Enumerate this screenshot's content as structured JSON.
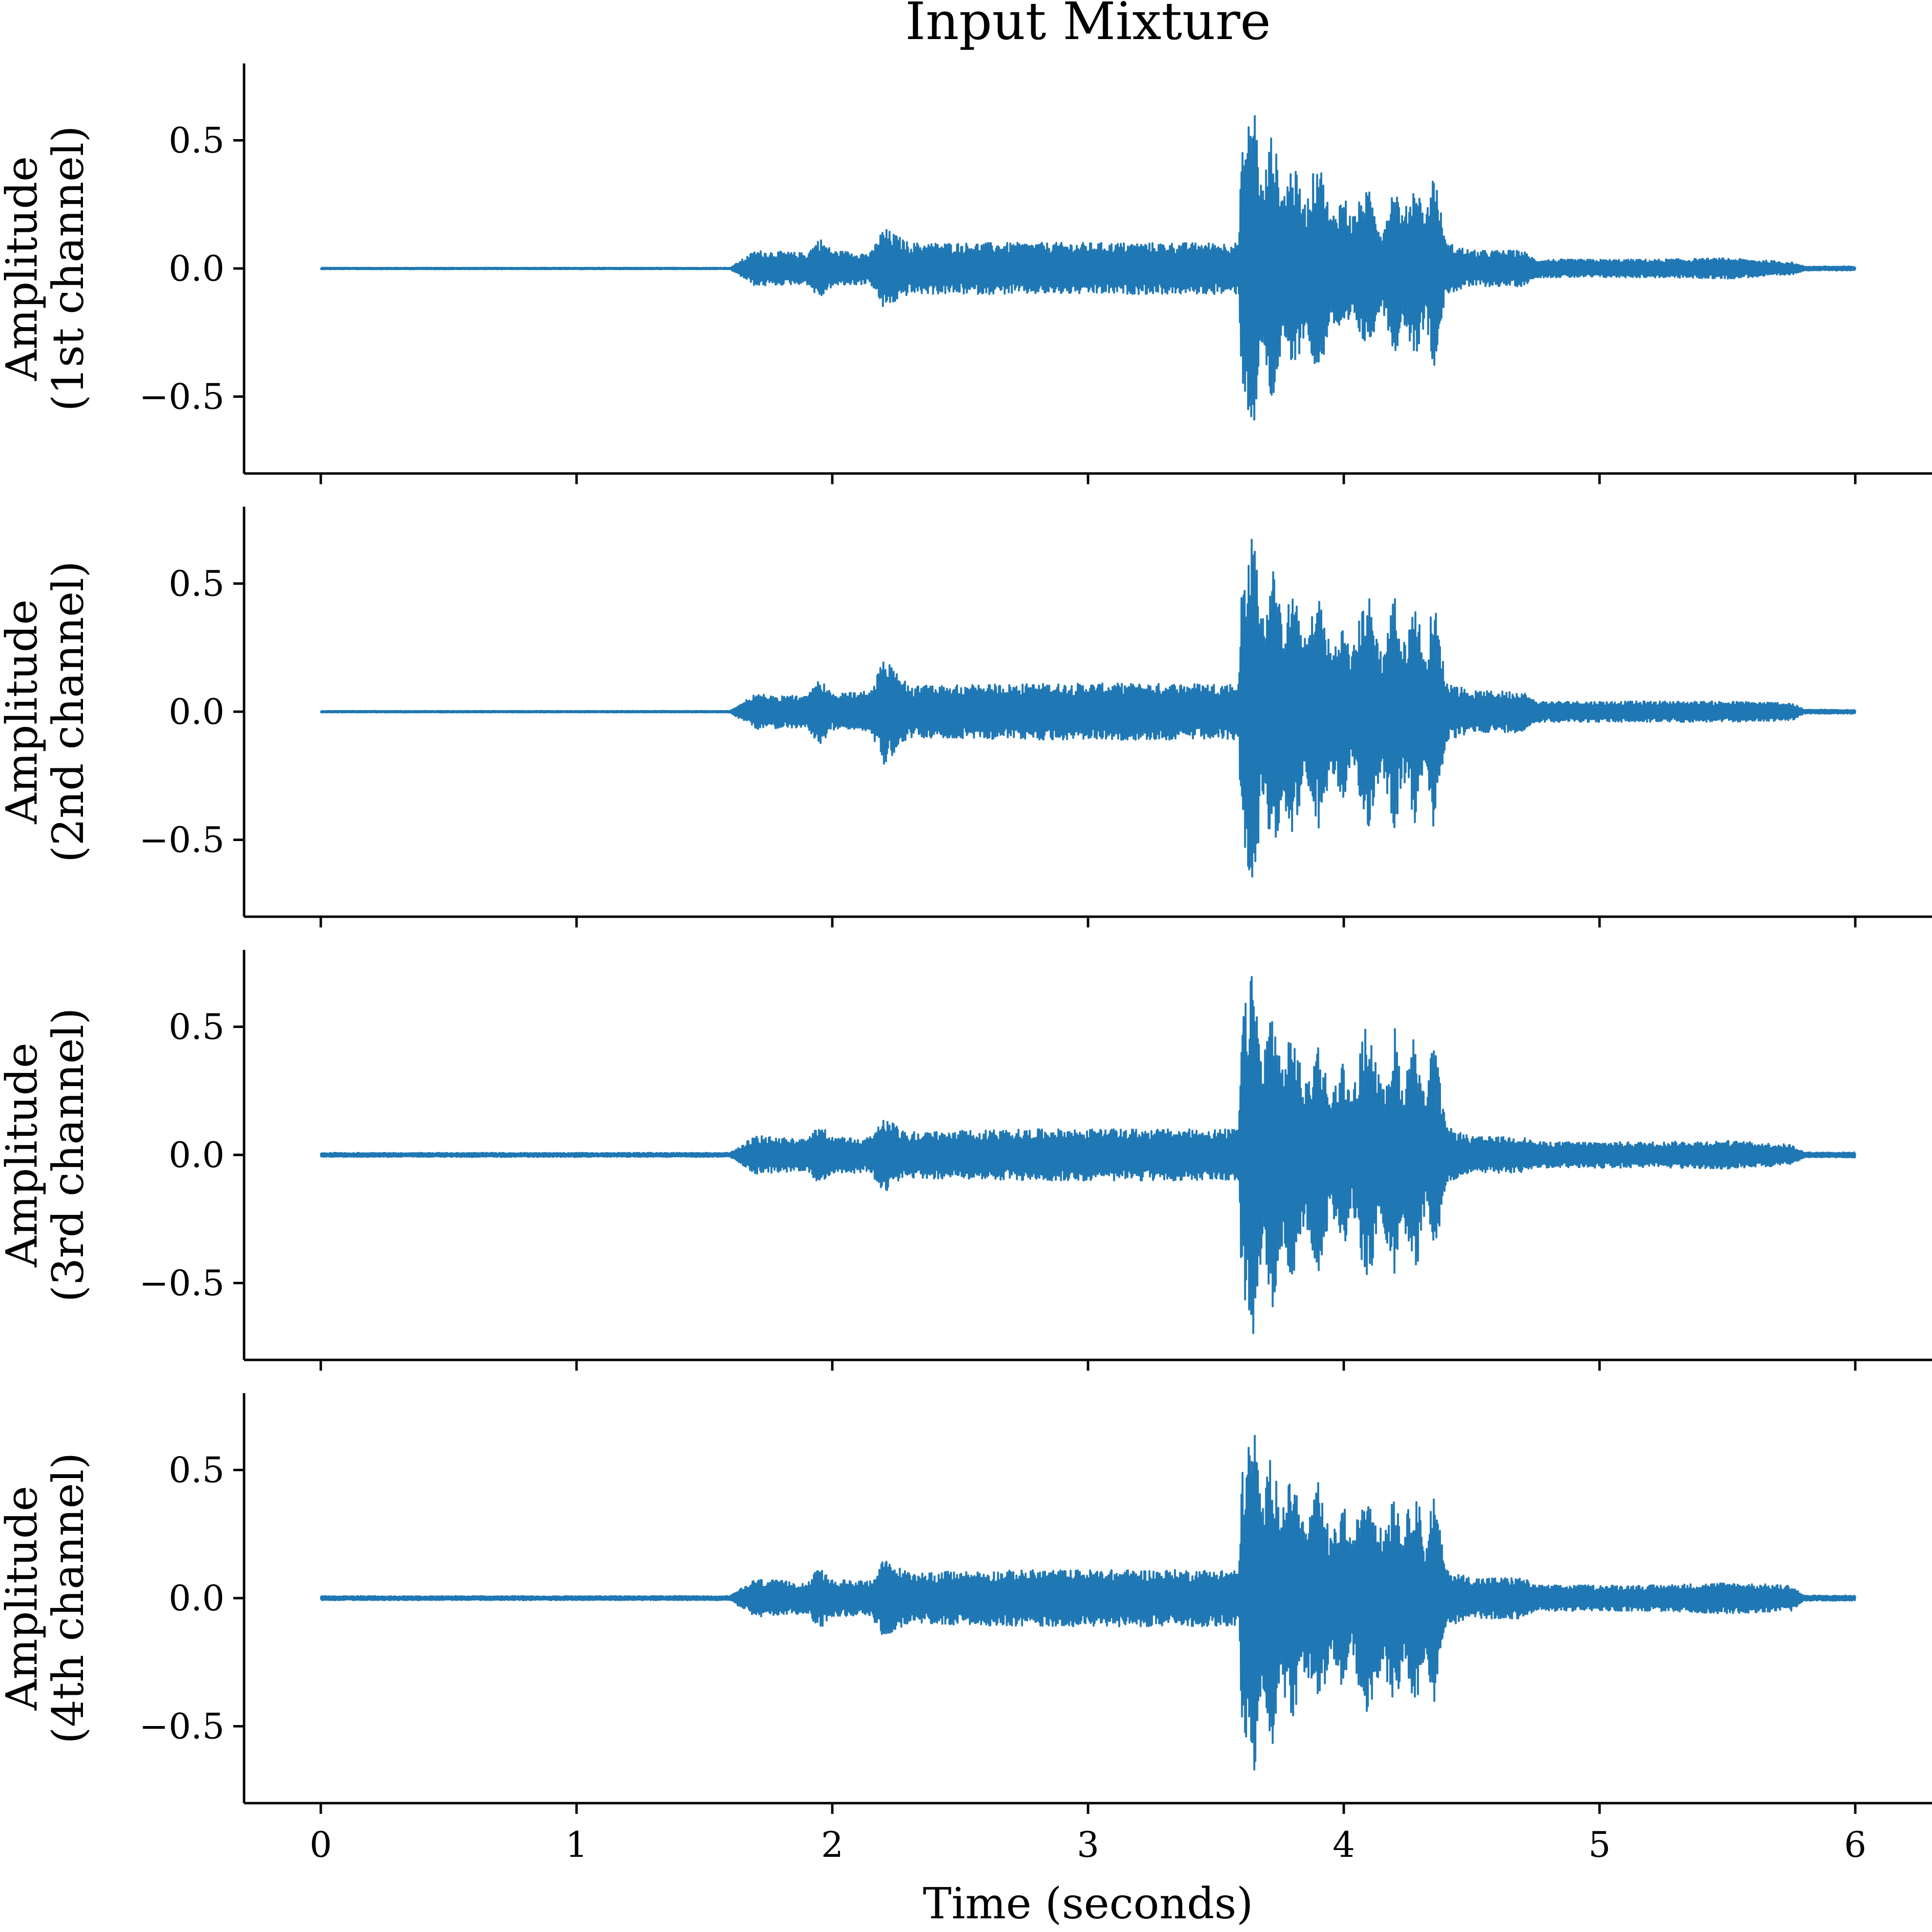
{
  "chart_data": {
    "type": "line",
    "title": "Input Mixture",
    "xlabel": "Time (seconds)",
    "xlim": [
      -0.3,
      6.3
    ],
    "xticks": [
      0,
      1,
      2,
      3,
      4,
      5,
      6
    ],
    "xtick_labels": [
      "0",
      "1",
      "2",
      "3",
      "4",
      "5",
      "6"
    ],
    "ylim": [
      -0.8,
      0.8
    ],
    "yticks": [
      0.5,
      0.0,
      -0.5
    ],
    "ytick_labels": [
      "0.5",
      "0.0",
      "−0.5"
    ],
    "grid": false,
    "line_color": "#1f77b4",
    "envelope_times": [
      0.0,
      1.6,
      1.7,
      1.9,
      1.95,
      2.0,
      2.15,
      2.2,
      2.3,
      2.8,
      3.5,
      3.59,
      3.6,
      3.65,
      3.68,
      3.72,
      3.76,
      3.8,
      3.85,
      3.9,
      3.95,
      4.0,
      4.03,
      4.08,
      4.1,
      4.15,
      4.2,
      4.23,
      4.28,
      4.32,
      4.35,
      4.4,
      4.5,
      4.7,
      4.75,
      5.2,
      5.5,
      5.75,
      5.8,
      6.0
    ],
    "series": [
      {
        "channel": "1st",
        "ylabel": [
          "Amplitude",
          "(1st channel)"
        ],
        "envelope_peak": [
          0.003,
          0.003,
          0.07,
          0.06,
          0.12,
          0.07,
          0.06,
          0.16,
          0.1,
          0.1,
          0.1,
          0.1,
          0.45,
          0.67,
          0.3,
          0.55,
          0.3,
          0.42,
          0.25,
          0.45,
          0.2,
          0.3,
          0.2,
          0.3,
          0.3,
          0.15,
          0.35,
          0.2,
          0.35,
          0.2,
          0.4,
          0.1,
          0.07,
          0.07,
          0.035,
          0.035,
          0.04,
          0.025,
          0.008,
          0.008
        ]
      },
      {
        "channel": "2nd",
        "ylabel": [
          "Amplitude",
          "(2nd channel)"
        ],
        "envelope_peak": [
          0.003,
          0.003,
          0.07,
          0.06,
          0.13,
          0.07,
          0.08,
          0.21,
          0.1,
          0.11,
          0.11,
          0.11,
          0.5,
          0.73,
          0.35,
          0.6,
          0.35,
          0.48,
          0.28,
          0.48,
          0.24,
          0.35,
          0.22,
          0.45,
          0.45,
          0.22,
          0.48,
          0.25,
          0.45,
          0.2,
          0.46,
          0.12,
          0.08,
          0.08,
          0.04,
          0.04,
          0.04,
          0.035,
          0.008,
          0.008
        ]
      },
      {
        "channel": "3rd",
        "ylabel": [
          "Amplitude",
          "(3rd channel)"
        ],
        "envelope_peak": [
          0.008,
          0.008,
          0.075,
          0.06,
          0.12,
          0.07,
          0.07,
          0.15,
          0.09,
          0.1,
          0.1,
          0.1,
          0.52,
          0.75,
          0.35,
          0.62,
          0.35,
          0.5,
          0.27,
          0.46,
          0.23,
          0.38,
          0.2,
          0.5,
          0.5,
          0.25,
          0.5,
          0.26,
          0.5,
          0.2,
          0.47,
          0.11,
          0.07,
          0.07,
          0.05,
          0.05,
          0.055,
          0.04,
          0.01,
          0.01
        ]
      },
      {
        "channel": "4th",
        "ylabel": [
          "Amplitude",
          "(4th channel)"
        ],
        "envelope_peak": [
          0.008,
          0.008,
          0.075,
          0.06,
          0.12,
          0.07,
          0.07,
          0.15,
          0.1,
          0.11,
          0.11,
          0.11,
          0.48,
          0.7,
          0.35,
          0.6,
          0.35,
          0.5,
          0.27,
          0.45,
          0.23,
          0.38,
          0.2,
          0.45,
          0.45,
          0.25,
          0.45,
          0.25,
          0.47,
          0.2,
          0.43,
          0.11,
          0.08,
          0.08,
          0.05,
          0.05,
          0.06,
          0.05,
          0.01,
          0.01
        ]
      }
    ]
  }
}
